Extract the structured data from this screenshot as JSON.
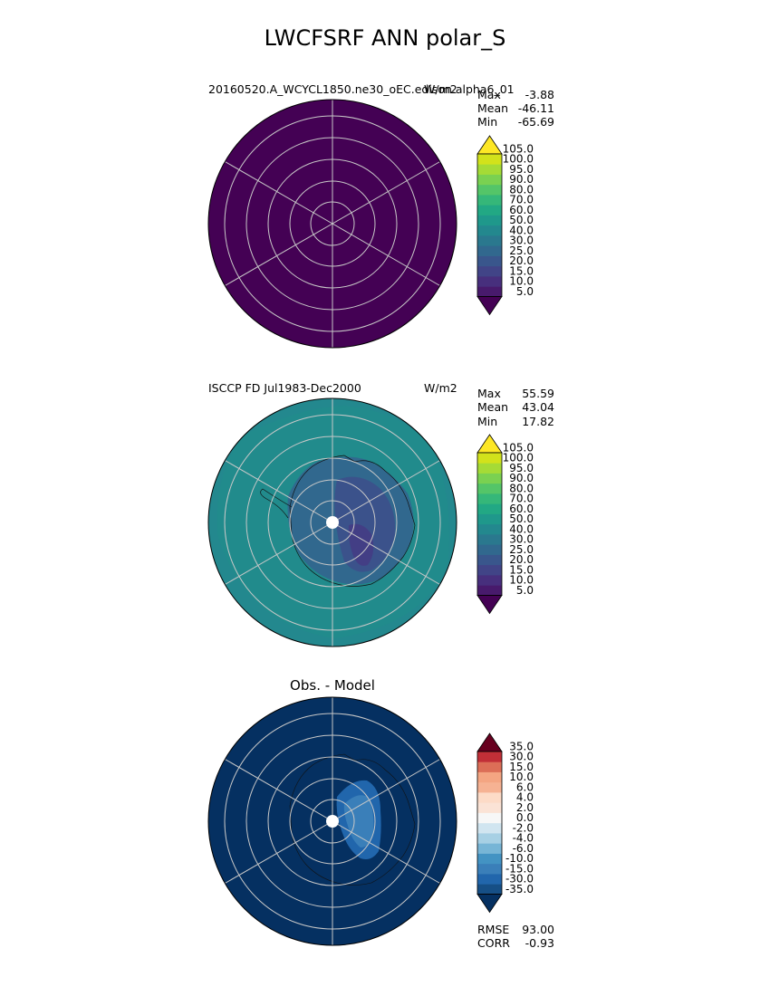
{
  "figure": {
    "title": "LWCFSRF ANN polar_S"
  },
  "panels": [
    {
      "id": "model",
      "left_label": "20160520.A_WCYCL1850.ne30_oEC.edison.alpha6_01",
      "units": "W/m2",
      "stats": [
        {
          "key": "Max",
          "value": "-3.88"
        },
        {
          "key": "Mean",
          "value": "-46.11"
        },
        {
          "key": "Min",
          "value": "-65.69"
        }
      ]
    },
    {
      "id": "obs",
      "left_label": "ISCCP FD Jul1983-Dec2000",
      "units": "W/m2",
      "stats": [
        {
          "key": "Max",
          "value": "55.59"
        },
        {
          "key": "Mean",
          "value": "43.04"
        },
        {
          "key": "Min",
          "value": "17.82"
        }
      ]
    },
    {
      "id": "diff",
      "title": "Obs. - Model",
      "metrics": [
        {
          "key": "RMSE",
          "value": "93.00"
        },
        {
          "key": "CORR",
          "value": "-0.93"
        }
      ]
    }
  ],
  "chart_data": [
    {
      "type": "heatmap",
      "projection": "south-polar-stereographic",
      "field": "model",
      "units": "W/m2",
      "stats": {
        "max": -3.88,
        "mean": -46.11,
        "min": -65.69
      },
      "fill": "uniform-lowest-level",
      "colorbar": {
        "colormap": "viridis",
        "ticks": [
          "5.0",
          "10.0",
          "15.0",
          "20.0",
          "25.0",
          "30.0",
          "40.0",
          "50.0",
          "60.0",
          "70.0",
          "80.0",
          "90.0",
          "95.0",
          "100.0",
          "105.0"
        ],
        "extend": "both"
      }
    },
    {
      "type": "heatmap",
      "projection": "south-polar-stereographic",
      "field": "observations",
      "units": "W/m2",
      "stats": {
        "max": 55.59,
        "mean": 43.04,
        "min": 17.82
      },
      "colorbar": {
        "colormap": "viridis",
        "ticks": [
          "5.0",
          "10.0",
          "15.0",
          "20.0",
          "25.0",
          "30.0",
          "40.0",
          "50.0",
          "60.0",
          "70.0",
          "80.0",
          "90.0",
          "95.0",
          "100.0",
          "105.0"
        ],
        "extend": "both"
      }
    },
    {
      "type": "heatmap",
      "projection": "south-polar-stereographic",
      "field": "difference",
      "title": "Obs. - Model",
      "metrics": {
        "rmse": 93.0,
        "corr": -0.93
      },
      "colorbar": {
        "colormap": "RdBu_r",
        "ticks": [
          "-35.0",
          "-30.0",
          "-15.0",
          "-10.0",
          "-6.0",
          "-4.0",
          "-2.0",
          "0.0",
          "2.0",
          "4.0",
          "6.0",
          "10.0",
          "15.0",
          "30.0",
          "35.0"
        ],
        "extend": "both"
      }
    }
  ],
  "colors": {
    "viridis": [
      "#440154",
      "#481a6c",
      "#472f7d",
      "#414487",
      "#39568c",
      "#31688e",
      "#2a788e",
      "#23888e",
      "#1f988b",
      "#22a884",
      "#35b779",
      "#54c568",
      "#7ad151",
      "#a5db36",
      "#d2e21b",
      "#fde725"
    ],
    "rdbu_r": [
      "#053061",
      "#164f86",
      "#2166ac",
      "#3a7fb9",
      "#4393c3",
      "#77b5d6",
      "#a7d0e4",
      "#d1e5f0",
      "#f7f7f7",
      "#fbe3d6",
      "#fddbc7",
      "#f6b293",
      "#f4a582",
      "#dc6e57",
      "#c12f37",
      "#67001f"
    ],
    "grid": "#c8c8c8"
  }
}
